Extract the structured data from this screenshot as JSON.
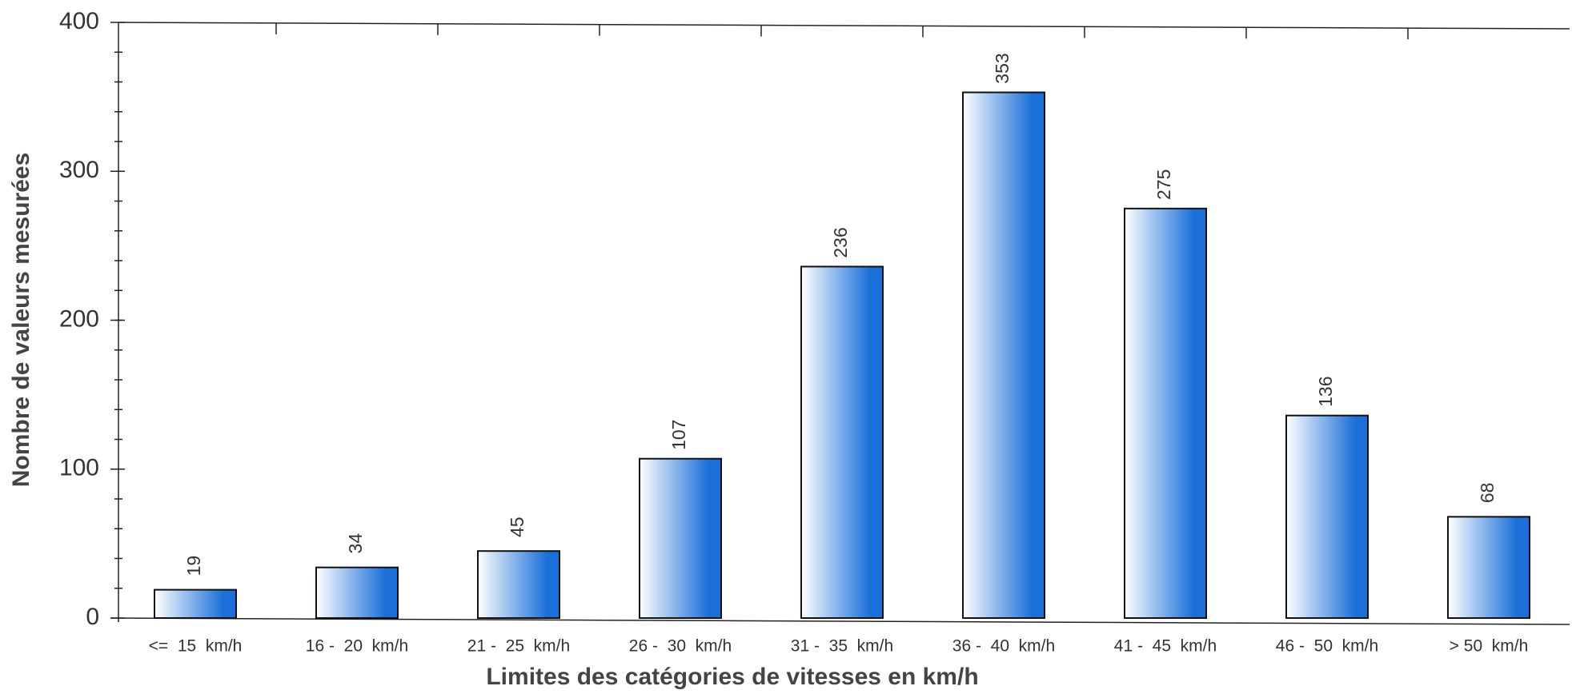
{
  "chart_data": {
    "type": "bar",
    "x_label": "Limites des catégories de vitesses en km/h",
    "y_label": "Nombre de valeurs mesurées",
    "categories": [
      "<=  15  km/h",
      "16 -  20  km/h",
      "21 -  25  km/h",
      "26 -  30  km/h",
      "31 -  35  km/h",
      "36 -  40  km/h",
      "41 -  45  km/h",
      "46 -  50  km/h",
      "> 50  km/h"
    ],
    "values": [
      19,
      34,
      45,
      107,
      236,
      353,
      275,
      136,
      68
    ],
    "color": "#1a6fd8",
    "ylim": [
      0,
      400
    ],
    "yticks": [
      0,
      100,
      200,
      300,
      400
    ]
  }
}
